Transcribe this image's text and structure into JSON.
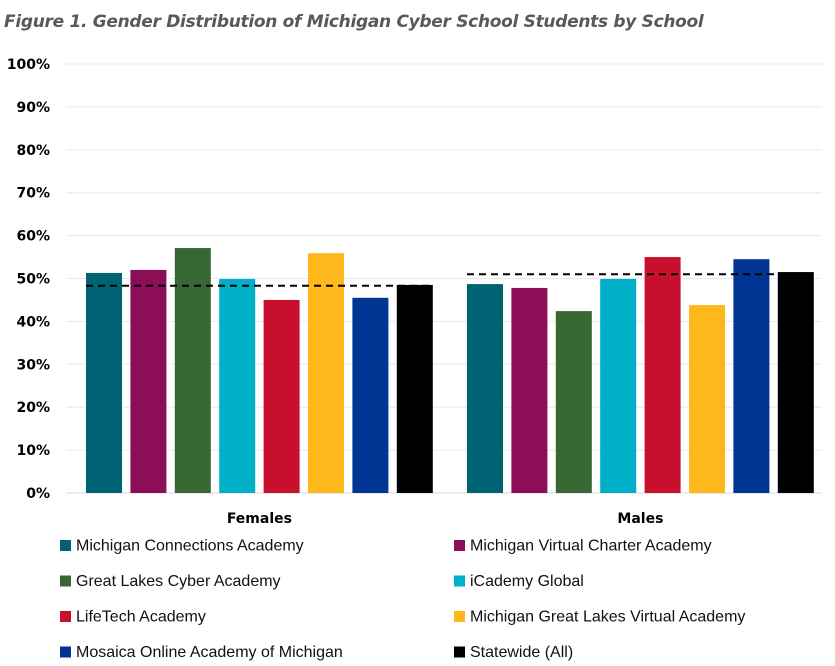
{
  "chart_data": {
    "type": "bar",
    "title": "Figure 1. Gender Distribution of Michigan Cyber School Students by School",
    "categories": [
      "Females",
      "Males"
    ],
    "xlabel": "",
    "ylabel": "",
    "ylim": [
      0,
      100
    ],
    "yticks": [
      "0%",
      "10%",
      "20%",
      "30%",
      "40%",
      "50%",
      "60%",
      "70%",
      "80%",
      "90%",
      "100%"
    ],
    "grid": true,
    "legend_position": "bottom",
    "series": [
      {
        "name": "Michigan Connections Academy",
        "color": "#006373",
        "values": [
          51.3,
          48.7
        ]
      },
      {
        "name": "Michigan Virtual Charter Academy",
        "color": "#8B0E57",
        "values": [
          52.0,
          47.8
        ]
      },
      {
        "name": "Great Lakes Cyber Academy",
        "color": "#376834",
        "values": [
          57.1,
          42.4
        ]
      },
      {
        "name": "iCademy Global",
        "color": "#00AFC8",
        "values": [
          49.9,
          49.9
        ]
      },
      {
        "name": "LifeTech Academy",
        "color": "#C8102E",
        "values": [
          45.0,
          55.0
        ]
      },
      {
        "name": "Michigan Great Lakes Virtual Academy",
        "color": "#FFB81C",
        "values": [
          55.9,
          43.8
        ]
      },
      {
        "name": "Mosaica Online Academy of Michigan",
        "color": "#003594",
        "values": [
          45.5,
          54.5
        ]
      },
      {
        "name": "Statewide (All)",
        "color": "#000000",
        "values": [
          48.5,
          51.5
        ]
      }
    ],
    "reference_lines": [
      {
        "category": "Females",
        "value": 48.3,
        "style": "dashed"
      },
      {
        "category": "Males",
        "value": 51.0,
        "style": "dashed"
      }
    ]
  }
}
